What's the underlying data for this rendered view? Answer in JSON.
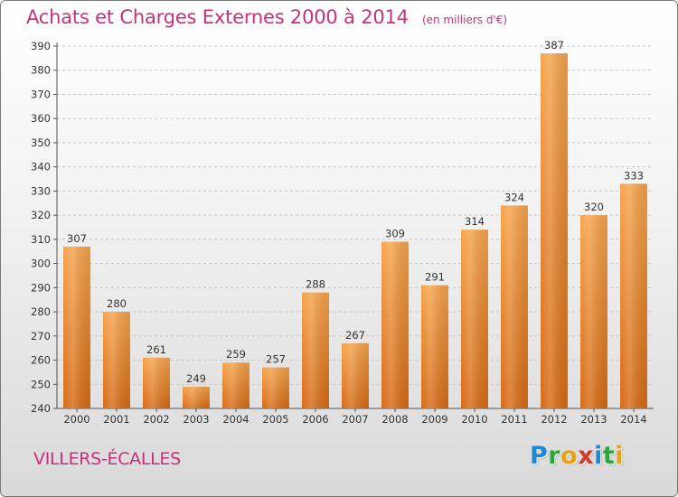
{
  "header": {
    "title": "Achats et Charges Externes 2000 à 2014",
    "subtitle": "(en milliers d'€)"
  },
  "footer": {
    "town": "VILLERS-ÉCALLES",
    "brand_letters": [
      {
        "ch": "P",
        "color": "#1e88d2"
      },
      {
        "ch": "r",
        "color": "#2aa63a"
      },
      {
        "ch": "o",
        "color": "#e8a21a"
      },
      {
        "ch": "x",
        "color": "#d23a2e"
      },
      {
        "ch": "i",
        "color": "#1e88d2"
      },
      {
        "ch": "t",
        "color": "#2aa63a"
      },
      {
        "ch": "i",
        "color": "#e8a21a"
      }
    ]
  },
  "chart_data": {
    "type": "bar",
    "title": "Achats et Charges Externes 2000 à 2014",
    "subtitle": "(en milliers d'€)",
    "xlabel": "",
    "ylabel": "",
    "categories": [
      "2000",
      "2001",
      "2002",
      "2003",
      "2004",
      "2005",
      "2006",
      "2007",
      "2008",
      "2009",
      "2010",
      "2011",
      "2012",
      "2013",
      "2014"
    ],
    "values": [
      307,
      280,
      261,
      249,
      259,
      257,
      288,
      267,
      309,
      291,
      314,
      324,
      387,
      320,
      333
    ],
    "ylim": [
      240,
      390
    ],
    "yticks": [
      240,
      250,
      260,
      270,
      280,
      290,
      300,
      310,
      320,
      330,
      340,
      350,
      360,
      370,
      380,
      390
    ],
    "grid": true,
    "bar_color": "#f0912e",
    "legend": "none"
  }
}
